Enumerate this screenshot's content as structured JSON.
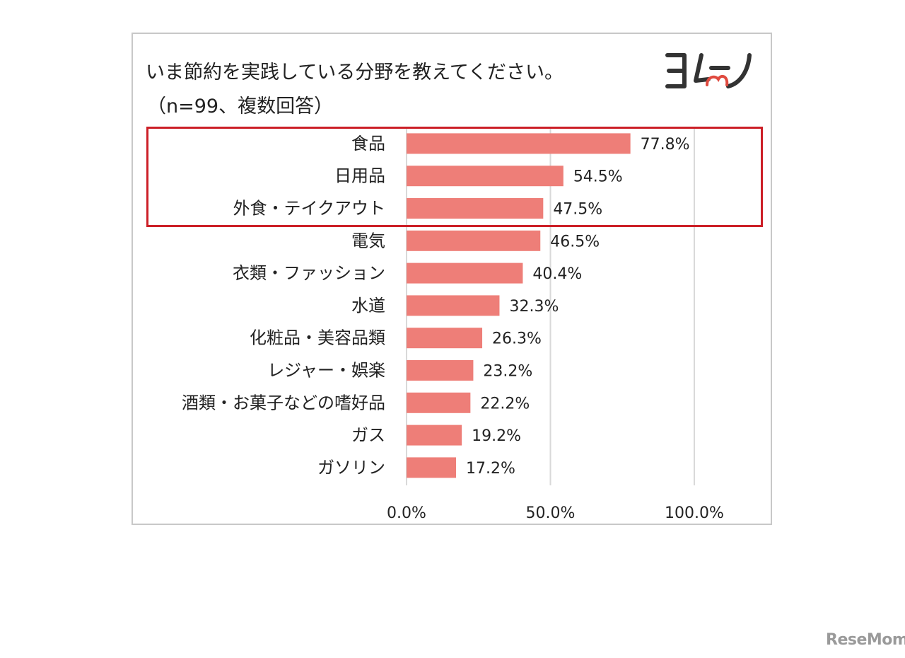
{
  "title": "いま節約を実践している分野を教えてください。",
  "subtitle": "（n=99、複数回答）",
  "logo_text": "ヨムーノ",
  "watermark": "ReseMom",
  "colors": {
    "bar": "#ee7e78",
    "highlight": "#cc1f27",
    "grid": "#d9d9d9"
  },
  "chart_data": {
    "type": "bar",
    "orientation": "horizontal",
    "categories": [
      "食品",
      "日用品",
      "外食・テイクアウト",
      "電気",
      "衣類・ファッション",
      "水道",
      "化粧品・美容品類",
      "レジャー・娯楽",
      "酒類・お菓子などの嗜好品",
      "ガス",
      "ガソリン"
    ],
    "values": [
      77.8,
      54.5,
      47.5,
      46.5,
      40.4,
      32.3,
      26.3,
      23.2,
      22.2,
      19.2,
      17.2
    ],
    "value_labels": [
      "77.8%",
      "54.5%",
      "47.5%",
      "46.5%",
      "40.4%",
      "32.3%",
      "26.3%",
      "23.2%",
      "22.2%",
      "19.2%",
      "17.2%"
    ],
    "xlim": [
      0,
      100
    ],
    "x_ticks": [
      0,
      50,
      100
    ],
    "x_tick_labels": [
      "0.0%",
      "50.0%",
      "100.0%"
    ],
    "highlighted_categories": [
      "食品",
      "日用品",
      "外食・テイクアウト"
    ],
    "grid": true,
    "legend": "none"
  }
}
